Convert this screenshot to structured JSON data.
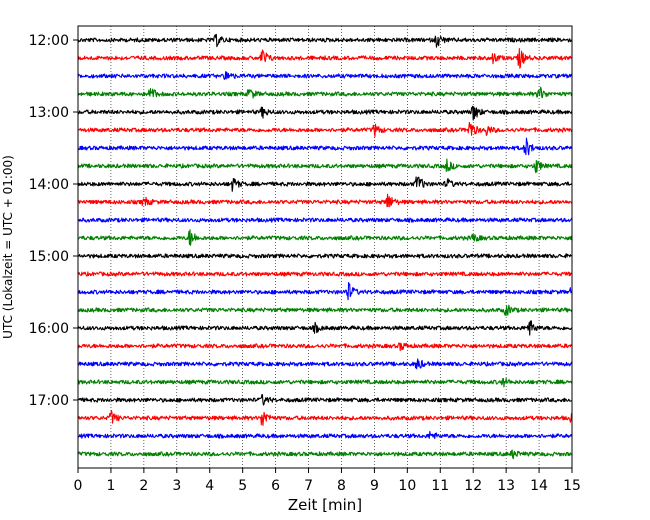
{
  "chart_data": {
    "type": "line",
    "title": "",
    "xlabel": "Zeit  [min]",
    "ylabel": "UTC (Lokalzeit = UTC + 01:00)",
    "xlim": [
      0,
      15
    ],
    "x_ticks": [
      "0",
      "1",
      "2",
      "3",
      "4",
      "5",
      "6",
      "7",
      "8",
      "9",
      "10",
      "11",
      "12",
      "13",
      "14",
      "15"
    ],
    "y_ticks": [
      "12:00",
      "13:00",
      "14:00",
      "15:00",
      "16:00",
      "17:00"
    ],
    "x_grid": true,
    "color_cycle": [
      "#000000",
      "#ff0000",
      "#0000ff",
      "#008000"
    ],
    "rows": [
      {
        "time": "12:00",
        "color": "#000000",
        "events": [
          [
            4.2,
            0.6
          ],
          [
            10.9,
            0.7
          ]
        ]
      },
      {
        "time": "12:15",
        "color": "#ff0000",
        "events": [
          [
            5.6,
            0.9
          ],
          [
            12.6,
            0.5
          ],
          [
            13.4,
            1.0
          ]
        ]
      },
      {
        "time": "12:30",
        "color": "#0000ff",
        "events": [
          [
            4.5,
            0.5
          ]
        ]
      },
      {
        "time": "12:45",
        "color": "#008000",
        "events": [
          [
            2.2,
            0.7
          ],
          [
            5.2,
            0.6
          ],
          [
            14.0,
            0.8
          ]
        ]
      },
      {
        "time": "13:00",
        "color": "#000000",
        "events": [
          [
            5.6,
            0.5
          ],
          [
            12.0,
            0.9
          ]
        ]
      },
      {
        "time": "13:15",
        "color": "#ff0000",
        "events": [
          [
            9.0,
            0.6
          ],
          [
            11.9,
            1.0
          ],
          [
            12.4,
            0.5
          ]
        ]
      },
      {
        "time": "13:30",
        "color": "#0000ff",
        "events": [
          [
            13.6,
            1.0
          ]
        ]
      },
      {
        "time": "13:45",
        "color": "#008000",
        "events": [
          [
            11.2,
            0.6
          ],
          [
            13.9,
            0.7
          ]
        ]
      },
      {
        "time": "14:00",
        "color": "#000000",
        "events": [
          [
            4.7,
            0.7
          ],
          [
            10.3,
            1.0
          ],
          [
            11.2,
            0.5
          ]
        ]
      },
      {
        "time": "14:15",
        "color": "#ff0000",
        "events": [
          [
            2.0,
            0.5
          ],
          [
            9.4,
            0.9
          ]
        ]
      },
      {
        "time": "14:30",
        "color": "#0000ff",
        "events": []
      },
      {
        "time": "14:45",
        "color": "#008000",
        "events": [
          [
            3.4,
            0.9
          ],
          [
            12.0,
            0.4
          ]
        ]
      },
      {
        "time": "15:00",
        "color": "#000000",
        "events": []
      },
      {
        "time": "15:15",
        "color": "#ff0000",
        "events": []
      },
      {
        "time": "15:30",
        "color": "#0000ff",
        "events": [
          [
            8.2,
            1.0
          ],
          [
            15.0,
            0.6
          ]
        ]
      },
      {
        "time": "15:45",
        "color": "#008000",
        "events": [
          [
            13.0,
            0.6
          ]
        ]
      },
      {
        "time": "16:00",
        "color": "#000000",
        "events": [
          [
            7.2,
            0.4
          ],
          [
            13.7,
            0.9
          ]
        ]
      },
      {
        "time": "16:15",
        "color": "#ff0000",
        "events": [
          [
            9.8,
            0.4
          ]
        ]
      },
      {
        "time": "16:30",
        "color": "#0000ff",
        "events": [
          [
            10.3,
            0.6
          ]
        ]
      },
      {
        "time": "16:45",
        "color": "#008000",
        "events": [
          [
            12.9,
            0.4
          ]
        ]
      },
      {
        "time": "17:00",
        "color": "#000000",
        "events": [
          [
            5.6,
            0.5
          ]
        ]
      },
      {
        "time": "17:15",
        "color": "#ff0000",
        "events": [
          [
            1.0,
            0.7
          ],
          [
            5.6,
            1.0
          ],
          [
            15.0,
            0.6
          ]
        ]
      },
      {
        "time": "17:30",
        "color": "#0000ff",
        "events": [
          [
            10.7,
            0.4
          ]
        ]
      },
      {
        "time": "17:45",
        "color": "#008000",
        "events": [
          [
            13.2,
            0.4
          ]
        ]
      }
    ]
  }
}
